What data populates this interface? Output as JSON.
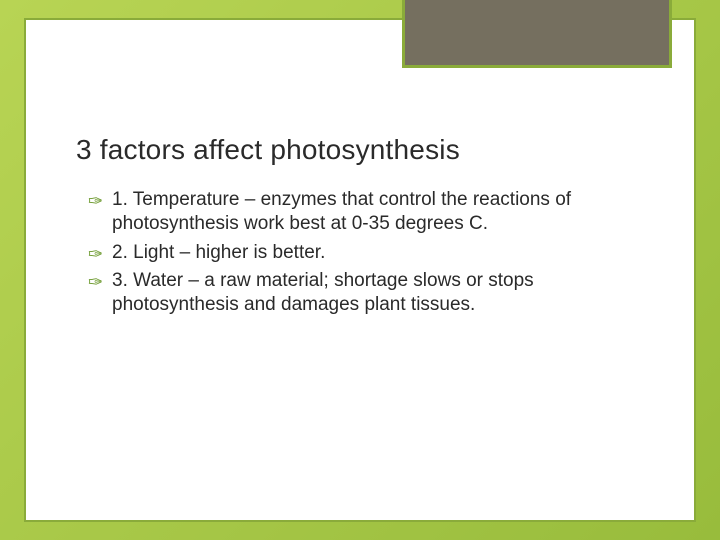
{
  "slide": {
    "title": "3 factors affect photosynthesis",
    "items": [
      "1.  Temperature – enzymes that control the reactions of photosynthesis work best at 0-35 degrees C.",
      "2.  Light – higher is better.",
      "3.  Water – a raw material; shortage slows or stops photosynthesis and damages plant tissues."
    ]
  },
  "style": {
    "bg_gradient_start": "#b8d454",
    "bg_gradient_end": "#98bc3c",
    "frame_border": "#8aab3a",
    "frame_bg": "#ffffff",
    "topbox_bg": "#756f5f",
    "bullet_color": "#6d9a2f",
    "title_fontsize": 28,
    "body_fontsize": 19,
    "text_color": "#2a2a2a"
  }
}
